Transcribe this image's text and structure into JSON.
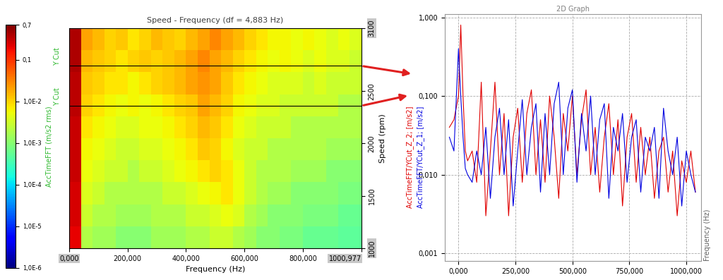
{
  "chart_data": [
    {
      "type": "heatmap",
      "title": "Speed - Frequency (df = 4,883 Hz)",
      "x_label": "Frequency (Hz)",
      "y_label": "Speed (rpm)",
      "x": [
        20,
        60,
        100,
        140,
        180,
        220,
        260,
        300,
        340,
        380,
        420,
        460,
        500,
        540,
        580,
        620,
        660,
        700,
        740,
        780,
        820,
        860,
        900,
        940,
        980
      ],
      "y": [
        1105,
        1315,
        1525,
        1735,
        1945,
        2155,
        2365,
        2575,
        2785,
        2995
      ],
      "cells": [
        [
          0.2,
          0.002,
          0.0015,
          0.0015,
          0.001,
          0.001,
          0.001,
          0.0015,
          0.0015,
          0.0015,
          0.002,
          0.002,
          0.003,
          0.003,
          0.002,
          0.0015,
          0.001,
          0.001,
          0.0008,
          0.0008,
          0.0006,
          0.0006,
          0.0006,
          0.0005,
          0.0005
        ],
        [
          0.25,
          0.003,
          0.002,
          0.002,
          0.0015,
          0.0015,
          0.0015,
          0.002,
          0.002,
          0.002,
          0.003,
          0.003,
          0.004,
          0.005,
          0.004,
          0.002,
          0.0015,
          0.001,
          0.001,
          0.001,
          0.0008,
          0.0008,
          0.0008,
          0.0006,
          0.0006
        ],
        [
          0.25,
          0.004,
          0.003,
          0.002,
          0.002,
          0.002,
          0.002,
          0.002,
          0.003,
          0.003,
          0.004,
          0.005,
          0.006,
          0.008,
          0.005,
          0.003,
          0.002,
          0.0015,
          0.0015,
          0.001,
          0.001,
          0.001,
          0.001,
          0.0008,
          0.0008
        ],
        [
          0.3,
          0.005,
          0.004,
          0.003,
          0.003,
          0.002,
          0.003,
          0.003,
          0.004,
          0.005,
          0.006,
          0.008,
          0.01,
          0.008,
          0.005,
          0.003,
          0.002,
          0.002,
          0.002,
          0.0015,
          0.0015,
          0.0015,
          0.001,
          0.001,
          0.001
        ],
        [
          0.3,
          0.006,
          0.005,
          0.004,
          0.003,
          0.003,
          0.004,
          0.004,
          0.005,
          0.006,
          0.008,
          0.012,
          0.01,
          0.006,
          0.004,
          0.003,
          0.003,
          0.002,
          0.002,
          0.002,
          0.002,
          0.002,
          0.0015,
          0.0015,
          0.0015
        ],
        [
          0.3,
          0.008,
          0.006,
          0.005,
          0.004,
          0.004,
          0.005,
          0.005,
          0.006,
          0.008,
          0.01,
          0.015,
          0.012,
          0.008,
          0.005,
          0.004,
          0.003,
          0.003,
          0.003,
          0.002,
          0.002,
          0.002,
          0.002,
          0.002,
          0.002
        ],
        [
          0.35,
          0.01,
          0.008,
          0.006,
          0.005,
          0.006,
          0.005,
          0.006,
          0.008,
          0.01,
          0.012,
          0.02,
          0.015,
          0.01,
          0.006,
          0.005,
          0.004,
          0.004,
          0.003,
          0.003,
          0.003,
          0.003,
          0.003,
          0.002,
          0.002
        ],
        [
          0.35,
          0.012,
          0.01,
          0.008,
          0.008,
          0.006,
          0.008,
          0.01,
          0.012,
          0.015,
          0.02,
          0.025,
          0.02,
          0.012,
          0.008,
          0.006,
          0.005,
          0.004,
          0.004,
          0.004,
          0.003,
          0.004,
          0.003,
          0.003,
          0.003
        ],
        [
          0.4,
          0.015,
          0.012,
          0.01,
          0.008,
          0.01,
          0.012,
          0.01,
          0.012,
          0.015,
          0.02,
          0.03,
          0.02,
          0.015,
          0.01,
          0.008,
          0.006,
          0.005,
          0.006,
          0.005,
          0.004,
          0.005,
          0.004,
          0.004,
          0.003
        ],
        [
          0.4,
          0.02,
          0.015,
          0.01,
          0.012,
          0.008,
          0.01,
          0.015,
          0.012,
          0.01,
          0.015,
          0.02,
          0.03,
          0.02,
          0.015,
          0.01,
          0.008,
          0.006,
          0.006,
          0.005,
          0.006,
          0.005,
          0.004,
          0.005,
          0.004
        ]
      ],
      "xlim": [
        0,
        1000.977
      ],
      "xticks": [
        {
          "value": 0,
          "label": "0,000"
        },
        {
          "value": 200,
          "label": "200,000"
        },
        {
          "value": 400,
          "label": "400,000"
        },
        {
          "value": 600,
          "label": "600,000"
        },
        {
          "value": 800,
          "label": "800,000"
        },
        {
          "value": 1000.977,
          "label": "1000,977"
        }
      ],
      "ylim": [
        1000,
        3100
      ],
      "yticks": [
        1000,
        1500,
        2000,
        2500,
        3100
      ],
      "colorbar": {
        "label": "AccTimeFFT (m/s2 rms)",
        "log": true,
        "range": [
          1e-06,
          0.7
        ],
        "ticks": [
          {
            "value": 0.7,
            "label": "0,7"
          },
          {
            "value": 0.1,
            "label": "0,1"
          },
          {
            "value": 0.01,
            "label": "1,0E-2"
          },
          {
            "value": 0.001,
            "label": "1,0E-3"
          },
          {
            "value": 0.0001,
            "label": "1,0E-4"
          },
          {
            "value": 1e-05,
            "label": "1,0E-5"
          },
          {
            "value": 1e-06,
            "label": "1,0E-6"
          }
        ]
      },
      "cuts": [
        {
          "label": "Y Cut",
          "value": 2740
        },
        {
          "label": "Y Cut",
          "value": 2360
        }
      ]
    },
    {
      "type": "line",
      "title": "2D Graph",
      "x_label": "Frequency (Hz)",
      "log": "y",
      "grid": true,
      "x": [
        -40,
        -20,
        0,
        10,
        20,
        30,
        40,
        60,
        80,
        100,
        120,
        140,
        160,
        180,
        200,
        220,
        240,
        260,
        280,
        300,
        320,
        340,
        360,
        380,
        400,
        420,
        440,
        460,
        480,
        500,
        520,
        540,
        560,
        580,
        600,
        620,
        640,
        660,
        680,
        700,
        720,
        740,
        760,
        780,
        800,
        820,
        840,
        860,
        880,
        900,
        920,
        940,
        960,
        980,
        1000,
        1020,
        1040
      ],
      "series": [
        {
          "name": "AccTimeFFT/YCut_Z_2; [m/s2]",
          "color": "#e00000",
          "values": [
            0.04,
            0.05,
            0.1,
            0.8,
            0.1,
            0.02,
            0.015,
            0.02,
            0.008,
            0.15,
            0.003,
            0.02,
            0.15,
            0.01,
            0.06,
            0.003,
            0.03,
            0.07,
            0.008,
            0.06,
            0.12,
            0.01,
            0.05,
            0.008,
            0.1,
            0.03,
            0.005,
            0.06,
            0.02,
            0.1,
            0.01,
            0.05,
            0.12,
            0.01,
            0.04,
            0.006,
            0.03,
            0.08,
            0.01,
            0.05,
            0.004,
            0.03,
            0.06,
            0.008,
            0.04,
            0.01,
            0.03,
            0.005,
            0.02,
            0.03,
            0.006,
            0.02,
            0.003,
            0.015,
            0.008,
            0.02,
            0.006
          ]
        },
        {
          "name": "AccTimeFFT/YCut_Z_1; [m/s2]",
          "color": "#0000e0",
          "values": [
            0.03,
            0.02,
            0.4,
            0.1,
            0.03,
            0.012,
            0.01,
            0.008,
            0.02,
            0.01,
            0.04,
            0.005,
            0.03,
            0.07,
            0.01,
            0.05,
            0.004,
            0.02,
            0.09,
            0.01,
            0.04,
            0.08,
            0.006,
            0.06,
            0.01,
            0.08,
            0.15,
            0.01,
            0.07,
            0.12,
            0.008,
            0.06,
            0.02,
            0.1,
            0.01,
            0.05,
            0.08,
            0.005,
            0.04,
            0.02,
            0.06,
            0.008,
            0.03,
            0.05,
            0.006,
            0.03,
            0.02,
            0.04,
            0.005,
            0.07,
            0.02,
            0.01,
            0.03,
            0.004,
            0.02,
            0.01,
            0.006
          ]
        }
      ],
      "xlim": [
        -60,
        1065
      ],
      "xticks": [
        {
          "value": 0,
          "label": "0,000"
        },
        {
          "value": 250,
          "label": "250,000"
        },
        {
          "value": 500,
          "label": "500,000"
        },
        {
          "value": 750,
          "label": "750,000"
        },
        {
          "value": 1000,
          "label": "1000,000"
        }
      ],
      "ylim": [
        0.0008,
        1.1
      ],
      "yticks": [
        {
          "value": 0.001,
          "label": "0,001"
        },
        {
          "value": 0.01,
          "label": "0,010"
        },
        {
          "value": 0.1,
          "label": "0,100"
        },
        {
          "value": 1,
          "label": "1,000"
        }
      ]
    }
  ]
}
